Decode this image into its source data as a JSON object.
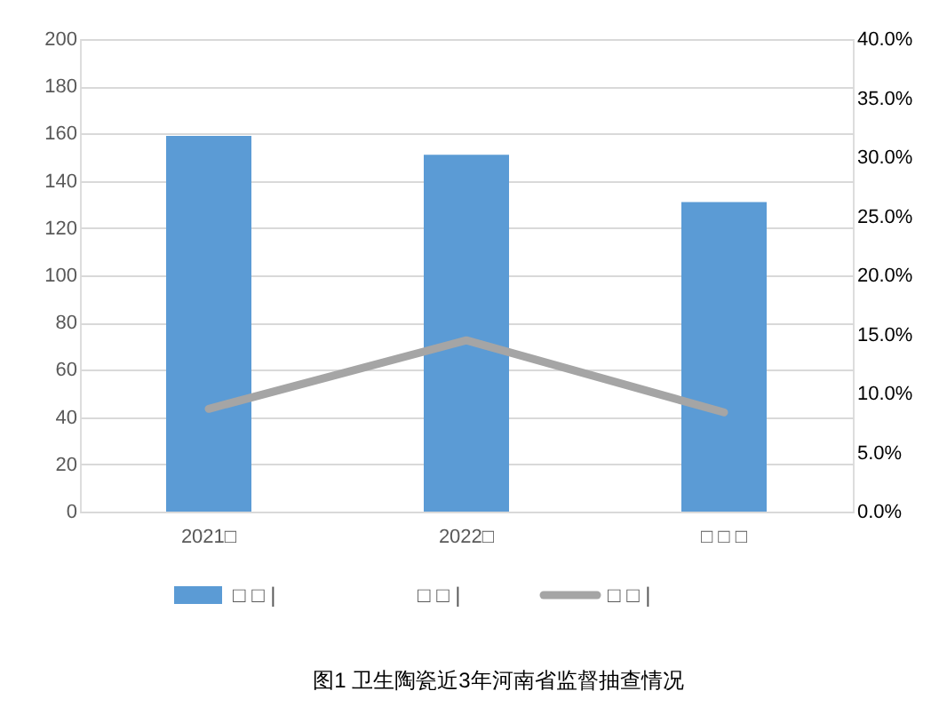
{
  "chart_data": {
    "type": "bar",
    "title": "图1 卫生陶瓷近3年河南省监督抽查情况",
    "categories": [
      "2021□",
      "2022□",
      "□ □ □"
    ],
    "series": [
      {
        "name": "□ □ |",
        "color": "#5b9bd5",
        "values": [
          159,
          151,
          131
        ]
      },
      {
        "name": "□ □ |",
        "values": [
          null,
          null,
          null
        ]
      },
      {
        "name": "□ □ |",
        "type": "line",
        "axis": "y2",
        "color": "#a5a5a5",
        "values": [
          8.7,
          14.5,
          8.4
        ]
      }
    ],
    "ylim": [
      0,
      200
    ],
    "yticks": [
      0,
      20,
      40,
      60,
      80,
      100,
      120,
      140,
      160,
      180,
      200
    ],
    "y2lim": [
      0,
      40
    ],
    "y2ticks": [
      {
        "value": 0,
        "label": "0.0%"
      },
      {
        "value": 5,
        "label": "5.0%"
      },
      {
        "value": 10,
        "label": "10.0%"
      },
      {
        "value": 15,
        "label": "15.0%"
      },
      {
        "value": 20,
        "label": "20.0%"
      },
      {
        "value": 25,
        "label": "25.0%"
      },
      {
        "value": 30,
        "label": "30.0%"
      },
      {
        "value": 35,
        "label": "35.0%"
      },
      {
        "value": 40,
        "label": "40.0%"
      }
    ],
    "grid": "y",
    "legend": "bottom"
  }
}
